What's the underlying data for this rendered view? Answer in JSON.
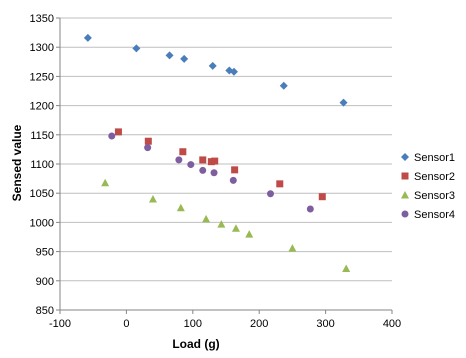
{
  "chart_data": {
    "type": "scatter",
    "title": "",
    "xlabel": "Load (g)",
    "ylabel": "Sensed value",
    "xlim": [
      -100,
      400
    ],
    "ylim": [
      850,
      1350
    ],
    "x_ticks": [
      -100,
      0,
      100,
      200,
      300,
      400
    ],
    "y_ticks": [
      850,
      900,
      950,
      1000,
      1050,
      1100,
      1150,
      1200,
      1250,
      1300,
      1350
    ],
    "grid": "horizontal major gridlines",
    "legend_position": "right",
    "series": [
      {
        "name": "Sensor1",
        "marker": "diamond",
        "color": "#4A7EBB",
        "points": [
          [
            -58,
            1316
          ],
          [
            15,
            1298
          ],
          [
            65,
            1286
          ],
          [
            87,
            1280
          ],
          [
            130,
            1268
          ],
          [
            155,
            1260
          ],
          [
            162,
            1258
          ],
          [
            237,
            1234
          ],
          [
            327,
            1205
          ]
        ]
      },
      {
        "name": "Sensor2",
        "marker": "square",
        "color": "#BE4B48",
        "points": [
          [
            -12,
            1155
          ],
          [
            33,
            1139
          ],
          [
            85,
            1121
          ],
          [
            115,
            1107
          ],
          [
            128,
            1104
          ],
          [
            133,
            1105
          ],
          [
            163,
            1090
          ],
          [
            231,
            1066
          ],
          [
            295,
            1044
          ]
        ]
      },
      {
        "name": "Sensor3",
        "marker": "triangle",
        "color": "#98B954",
        "points": [
          [
            -32,
            1068
          ],
          [
            40,
            1040
          ],
          [
            82,
            1025
          ],
          [
            120,
            1006
          ],
          [
            143,
            997
          ],
          [
            165,
            990
          ],
          [
            185,
            980
          ],
          [
            250,
            956
          ],
          [
            331,
            921
          ]
        ]
      },
      {
        "name": "Sensor4",
        "marker": "circle",
        "color": "#7D5FA0",
        "points": [
          [
            -22,
            1148
          ],
          [
            32,
            1128
          ],
          [
            79,
            1107
          ],
          [
            97,
            1099
          ],
          [
            115,
            1089
          ],
          [
            132,
            1085
          ],
          [
            161,
            1072
          ],
          [
            217,
            1049
          ],
          [
            277,
            1023
          ]
        ]
      }
    ]
  }
}
